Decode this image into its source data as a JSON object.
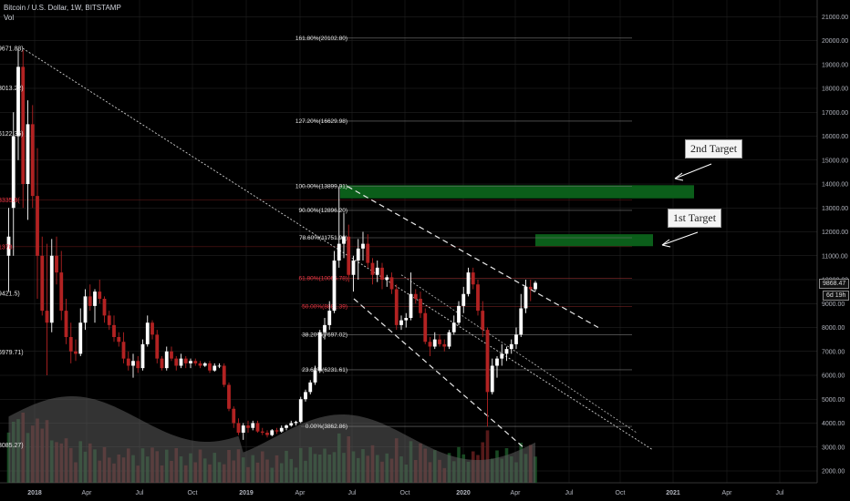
{
  "header": {
    "title": "Bitcoin / U.S. Dollar, 1W, BITSTAMP",
    "volume_label": "Vol"
  },
  "price_tags": {
    "last_price": "9868.47",
    "countdown": "6d 19h"
  },
  "targets": {
    "first": "1st Target",
    "second": "2nd Target"
  },
  "colors": {
    "background": "#000000",
    "up_candle": "#ffffff",
    "down_candle": "#b22222",
    "target_zone": "#0b5e1a",
    "grid": "#2a2a2a",
    "volume_area": "#5c5c5c"
  },
  "chart_data": {
    "type": "candlestick",
    "title": "Bitcoin / U.S. Dollar, 1W, BITSTAMP",
    "y_axis": {
      "ticks": [
        "2000.00",
        "3000.00",
        "4000.00",
        "5000.00",
        "6000.00",
        "7000.00",
        "8000.00",
        "9000.00",
        "10000.00",
        "11000.00",
        "12000.00",
        "13000.00",
        "14000.00",
        "15000.00",
        "16000.00",
        "17000.00",
        "18000.00",
        "19000.00",
        "20000.00",
        "21000.00"
      ],
      "range": [
        1700,
        21200
      ]
    },
    "x_axis": {
      "ticks": [
        "2018",
        "Apr",
        "Jul",
        "Oct",
        "2019",
        "Apr",
        "Jul",
        "Oct",
        "2020",
        "Apr",
        "Jul",
        "Oct",
        "2021",
        "Apr",
        "Jul"
      ]
    },
    "fibonacci_levels": [
      {
        "label": "161.80%(20102.80)",
        "value": 20102.8
      },
      {
        "label": "127.20%(16629.98)",
        "value": 16629.98
      },
      {
        "label": "100.00%(13899.91)",
        "value": 13899.91
      },
      {
        "label": "90.00%(12896.20)",
        "value": 12896.2
      },
      {
        "label": "78.60%(11751.98)",
        "value": 11751.98
      },
      {
        "label": "61.80%(10065.78)",
        "value": 10065.78
      },
      {
        "label": "50.00%(8881.39)",
        "value": 8881.39
      },
      {
        "label": "38.20%(7697.02)",
        "value": 7697.02
      },
      {
        "label": "23.60%(6231.61)",
        "value": 6231.61
      },
      {
        "label": "0.00%(3862.86)",
        "value": 3862.86
      }
    ],
    "left_price_labels": [
      {
        "label": "9671.88)",
        "value": 19671.88
      },
      {
        "label": "8013.22)",
        "value": 18013.22
      },
      {
        "label": "6122.35)",
        "value": 16122.35
      },
      {
        "label": "3335.8(",
        "value": 13335.8
      },
      {
        "label": "1378.",
        "value": 11378
      },
      {
        "label": "9421.5)",
        "value": 9421.5
      },
      {
        "label": "6979.71)",
        "value": 6979.71
      },
      {
        "label": "3085.27)",
        "value": 3085.27
      }
    ],
    "target_zones": [
      {
        "name": "1st Target",
        "from": 11400,
        "to": 11900
      },
      {
        "name": "2nd Target",
        "from": 13400,
        "to": 13950
      }
    ],
    "candles": [
      [
        1,
        11000,
        13000,
        9500,
        11800
      ],
      [
        2,
        13000,
        17000,
        11000,
        16000
      ],
      [
        3,
        16000,
        19666,
        15000,
        18900
      ],
      [
        4,
        18900,
        19600,
        13000,
        14000
      ],
      [
        5,
        14000,
        17500,
        12500,
        16500
      ],
      [
        6,
        16500,
        17300,
        13000,
        13500
      ],
      [
        7,
        13500,
        15500,
        9200,
        11000
      ],
      [
        8,
        11000,
        11800,
        8500,
        8700
      ],
      [
        9,
        8700,
        11500,
        6000,
        8200
      ],
      [
        10,
        8200,
        11700,
        7800,
        11000
      ],
      [
        11,
        11000,
        11800,
        9800,
        10300
      ],
      [
        12,
        10300,
        11200,
        8300,
        8700
      ],
      [
        13,
        8700,
        9200,
        7300,
        7600
      ],
      [
        14,
        7600,
        8200,
        6500,
        7000
      ],
      [
        15,
        7000,
        7500,
        6600,
        6900
      ],
      [
        16,
        6900,
        8800,
        6800,
        8200
      ],
      [
        17,
        8200,
        9600,
        7900,
        9300
      ],
      [
        18,
        9300,
        9800,
        8700,
        8900
      ],
      [
        19,
        8900,
        9600,
        8200,
        9500
      ],
      [
        20,
        9500,
        10000,
        9000,
        9200
      ],
      [
        21,
        9200,
        9300,
        8200,
        8500
      ],
      [
        22,
        8500,
        8700,
        7900,
        8100
      ],
      [
        23,
        8100,
        8500,
        7400,
        7600
      ],
      [
        24,
        7600,
        7800,
        7200,
        7400
      ],
      [
        25,
        7400,
        7800,
        6500,
        6700
      ],
      [
        26,
        6700,
        7000,
        6200,
        6400
      ],
      [
        27,
        6400,
        6900,
        5900,
        6600
      ],
      [
        28,
        6600,
        6800,
        6100,
        6300
      ],
      [
        29,
        6300,
        7500,
        6200,
        7300
      ],
      [
        30,
        7300,
        8500,
        7200,
        8200
      ],
      [
        31,
        8200,
        8300,
        7500,
        7700
      ],
      [
        32,
        7700,
        7900,
        6500,
        6700
      ],
      [
        33,
        6700,
        6800,
        6200,
        6300
      ],
      [
        34,
        6300,
        7200,
        6200,
        7000
      ],
      [
        35,
        7000,
        7200,
        6600,
        6700
      ],
      [
        36,
        6700,
        6800,
        6200,
        6400
      ],
      [
        37,
        6400,
        6900,
        6300,
        6700
      ],
      [
        38,
        6700,
        6800,
        6300,
        6500
      ],
      [
        39,
        6500,
        6700,
        6300,
        6600
      ],
      [
        40,
        6600,
        6700,
        6400,
        6500
      ],
      [
        41,
        6500,
        6600,
        6300,
        6400
      ],
      [
        42,
        6400,
        6550,
        6350,
        6500
      ],
      [
        43,
        6500,
        6600,
        6100,
        6200
      ],
      [
        44,
        6200,
        6500,
        6150,
        6400
      ],
      [
        45,
        6400,
        6500,
        6300,
        6400
      ],
      [
        46,
        6400,
        6500,
        5500,
        5600
      ],
      [
        47,
        5600,
        5700,
        4500,
        4600
      ],
      [
        48,
        4600,
        4700,
        3800,
        4000
      ],
      [
        49,
        4000,
        4200,
        3500,
        3600
      ],
      [
        50,
        3600,
        4000,
        3300,
        3900
      ],
      [
        51,
        3900,
        4100,
        3600,
        3800
      ],
      [
        52,
        3800,
        4100,
        3700,
        4000
      ],
      [
        53,
        4000,
        4100,
        3600,
        3650
      ],
      [
        54,
        3650,
        3800,
        3500,
        3600
      ],
      [
        55,
        3600,
        3700,
        3400,
        3500
      ],
      [
        56,
        3500,
        3750,
        3450,
        3700
      ],
      [
        57,
        3700,
        3800,
        3550,
        3650
      ],
      [
        58,
        3650,
        3900,
        3600,
        3800
      ],
      [
        59,
        3800,
        3950,
        3700,
        3900
      ],
      [
        60,
        3900,
        4100,
        3850,
        4000
      ],
      [
        61,
        4000,
        4100,
        3900,
        4050
      ],
      [
        62,
        4050,
        5100,
        4000,
        5000
      ],
      [
        63,
        5000,
        5400,
        4900,
        5300
      ],
      [
        64,
        5300,
        5800,
        5200,
        5700
      ],
      [
        65,
        5700,
        6400,
        5600,
        6200
      ],
      [
        66,
        6200,
        7900,
        6100,
        7800
      ],
      [
        67,
        7800,
        8400,
        7500,
        8100
      ],
      [
        68,
        8100,
        9100,
        7900,
        8700
      ],
      [
        69,
        8700,
        11200,
        8600,
        10800
      ],
      [
        70,
        10800,
        13880,
        10500,
        11500
      ],
      [
        71,
        11500,
        12800,
        10900,
        11800
      ],
      [
        72,
        11800,
        12300,
        9900,
        10200
      ],
      [
        73,
        10200,
        11000,
        9500,
        10800
      ],
      [
        74,
        10800,
        11700,
        10000,
        11300
      ],
      [
        75,
        11300,
        12000,
        10800,
        11500
      ],
      [
        76,
        11500,
        11900,
        10500,
        10700
      ],
      [
        77,
        10700,
        10900,
        9800,
        10200
      ],
      [
        78,
        10200,
        10800,
        9900,
        10500
      ],
      [
        79,
        10500,
        10700,
        9600,
        10000
      ],
      [
        80,
        10000,
        10200,
        9700,
        10100
      ],
      [
        81,
        10100,
        10300,
        9400,
        9600
      ],
      [
        82,
        9600,
        9800,
        7900,
        8100
      ],
      [
        83,
        8100,
        8500,
        7900,
        8300
      ],
      [
        84,
        8300,
        8600,
        8000,
        8400
      ],
      [
        85,
        8400,
        10300,
        8300,
        9400
      ],
      [
        86,
        9400,
        9600,
        9000,
        9200
      ],
      [
        87,
        9200,
        9500,
        8400,
        8600
      ],
      [
        88,
        8600,
        8800,
        7300,
        7400
      ],
      [
        89,
        7400,
        7600,
        6800,
        7200
      ],
      [
        90,
        7200,
        7800,
        7100,
        7500
      ],
      [
        91,
        7500,
        7700,
        7200,
        7300
      ],
      [
        92,
        7300,
        7500,
        7000,
        7200
      ],
      [
        93,
        7200,
        7900,
        7100,
        7800
      ],
      [
        94,
        7800,
        8500,
        7700,
        8200
      ],
      [
        95,
        8200,
        9100,
        8100,
        8900
      ],
      [
        96,
        8900,
        9700,
        8600,
        9400
      ],
      [
        97,
        9400,
        10500,
        9300,
        10300
      ],
      [
        98,
        10300,
        10500,
        9600,
        9800
      ],
      [
        99,
        9800,
        10000,
        8500,
        8700
      ],
      [
        100,
        8700,
        9100,
        7600,
        7900
      ],
      [
        101,
        7900,
        8000,
        3850,
        5300
      ],
      [
        102,
        5300,
        6700,
        5200,
        6400
      ],
      [
        103,
        6400,
        6800,
        5900,
        6700
      ],
      [
        104,
        6700,
        7300,
        6400,
        6900
      ],
      [
        105,
        6900,
        7200,
        6600,
        7100
      ],
      [
        106,
        7100,
        7500,
        6900,
        7300
      ],
      [
        107,
        7300,
        8000,
        7100,
        7700
      ],
      [
        108,
        7700,
        9400,
        7600,
        8800
      ],
      [
        109,
        8800,
        10000,
        8600,
        9700
      ],
      [
        110,
        9700,
        10000,
        9100,
        9600
      ],
      [
        111,
        9600,
        9950,
        9500,
        9868.47
      ]
    ]
  }
}
